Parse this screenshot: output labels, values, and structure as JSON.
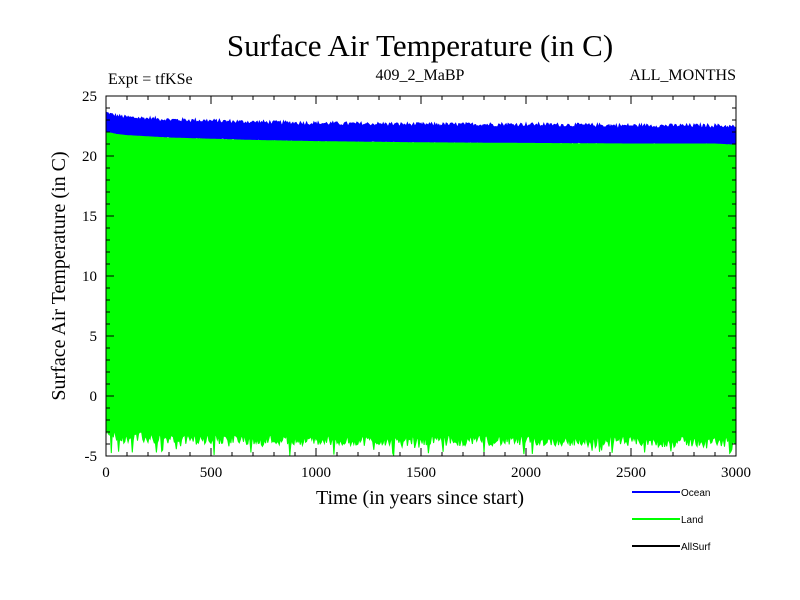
{
  "chart_data": {
    "type": "area",
    "title": "Surface Air Temperature (in C)",
    "subtitle_left": "Expt = tfKSe",
    "subtitle_center": "409_2_MaBP",
    "subtitle_right": "ALL_MONTHS",
    "xlabel": "Time (in years since start)",
    "ylabel": "Surface Air Temperature (in C)",
    "xlim": [
      0,
      3000
    ],
    "ylim": [
      -5,
      25
    ],
    "xticks": [
      0,
      500,
      1000,
      1500,
      2000,
      2500,
      3000
    ],
    "yticks": [
      -5,
      0,
      5,
      10,
      15,
      20,
      25
    ],
    "x_minor_step": 100,
    "y_minor_step": 1,
    "series": [
      {
        "name": "Ocean",
        "color": "#0000ff",
        "x": [
          0,
          50,
          100,
          200,
          300,
          500,
          700,
          1000,
          1500,
          2000,
          2500,
          2900,
          3000
        ],
        "upper": [
          23.6,
          23.3,
          23.2,
          23.1,
          23.0,
          22.9,
          22.8,
          22.7,
          22.6,
          22.6,
          22.5,
          22.5,
          22.4
        ],
        "lower": [
          22.0,
          21.8,
          21.7,
          21.6,
          21.5,
          21.4,
          21.3,
          21.2,
          21.1,
          21.05,
          21.0,
          21.0,
          20.9
        ]
      },
      {
        "name": "Land",
        "color": "#00ff00",
        "x": [
          0,
          50,
          100,
          200,
          300,
          500,
          700,
          1000,
          1500,
          2000,
          2500,
          2900,
          3000
        ],
        "upper": [
          22.0,
          21.8,
          21.7,
          21.6,
          21.5,
          21.4,
          21.3,
          21.2,
          21.1,
          21.05,
          21.0,
          21.0,
          20.9
        ],
        "lower": [
          -3.0,
          -3.2,
          -3.4,
          -3.5,
          -3.6,
          -3.6,
          -3.6,
          -3.7,
          -3.7,
          -3.7,
          -3.8,
          -3.8,
          -3.8
        ],
        "lower_min": -5.0
      },
      {
        "name": "AllSurf",
        "color": "#000000"
      }
    ]
  }
}
